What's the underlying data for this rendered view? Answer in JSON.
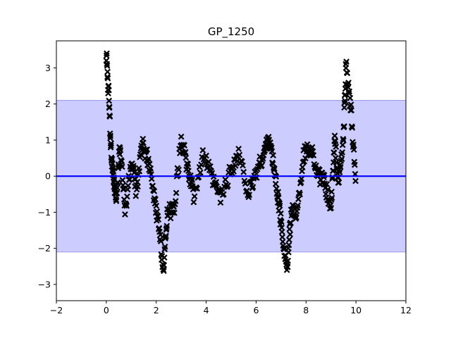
{
  "chart_data": {
    "type": "scatter",
    "title": "GP_1250",
    "xlabel": "",
    "ylabel": "",
    "xlim": [
      -2,
      12
    ],
    "ylim": [
      -3.45,
      3.75
    ],
    "xticks": [
      -2,
      0,
      2,
      4,
      6,
      8,
      10,
      12
    ],
    "yticks": [
      -3,
      -2,
      -1,
      0,
      1,
      2,
      3
    ],
    "grid": false,
    "band": {
      "name": "confidence band",
      "y_low": -2.1,
      "y_high": 2.1,
      "color": "#ccccff"
    },
    "mean_line": {
      "name": "GP mean",
      "y": 0.0,
      "color": "#0000ff"
    },
    "marker": {
      "symbol": "x",
      "color": "#000000"
    },
    "curve_knots": [
      [
        0.0,
        3.4
      ],
      [
        0.1,
        2.2
      ],
      [
        0.2,
        0.6
      ],
      [
        0.3,
        -0.2
      ],
      [
        0.4,
        -0.6
      ],
      [
        0.55,
        0.9
      ],
      [
        0.75,
        -1.0
      ],
      [
        1.0,
        0.4
      ],
      [
        1.2,
        -0.4
      ],
      [
        1.45,
        0.9
      ],
      [
        1.65,
        0.5
      ],
      [
        1.9,
        -0.5
      ],
      [
        2.1,
        -1.4
      ],
      [
        2.3,
        -2.6
      ],
      [
        2.45,
        -0.9
      ],
      [
        2.7,
        -1.0
      ],
      [
        3.0,
        1.1
      ],
      [
        3.25,
        0.2
      ],
      [
        3.5,
        -0.5
      ],
      [
        3.9,
        0.6
      ],
      [
        4.3,
        -0.2
      ],
      [
        4.6,
        -0.6
      ],
      [
        5.0,
        0.2
      ],
      [
        5.3,
        0.6
      ],
      [
        5.7,
        -0.5
      ],
      [
        6.0,
        0.1
      ],
      [
        6.3,
        0.6
      ],
      [
        6.5,
        1.1
      ],
      [
        6.7,
        0.3
      ],
      [
        6.9,
        -0.7
      ],
      [
        7.05,
        -1.6
      ],
      [
        7.25,
        -2.6
      ],
      [
        7.4,
        -1.0
      ],
      [
        7.65,
        -1.0
      ],
      [
        7.9,
        0.6
      ],
      [
        8.2,
        0.8
      ],
      [
        8.5,
        0.0
      ],
      [
        8.75,
        -0.2
      ],
      [
        9.0,
        -0.9
      ],
      [
        9.15,
        1.0
      ],
      [
        9.3,
        -0.2
      ],
      [
        9.5,
        1.0
      ],
      [
        9.6,
        3.1
      ],
      [
        9.8,
        1.8
      ],
      [
        10.0,
        -0.4
      ]
    ],
    "points_per_knot": 12,
    "jitter": 0.22
  }
}
